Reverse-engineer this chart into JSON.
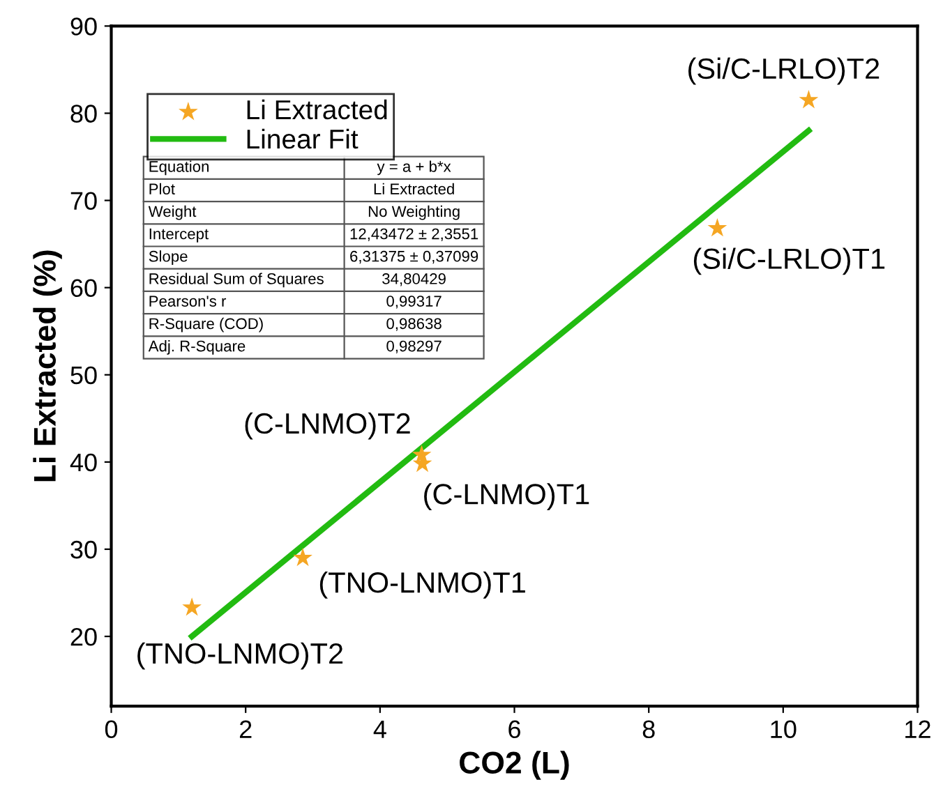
{
  "chart_data": {
    "type": "scatter",
    "xlabel": "CO2 (L)",
    "ylabel": "Li Extracted (%)",
    "xlim": [
      0,
      12
    ],
    "ylim": [
      12,
      90
    ],
    "xticks": [
      0,
      2,
      4,
      6,
      8,
      10,
      12
    ],
    "yticks": [
      20,
      30,
      40,
      50,
      60,
      70,
      80,
      90
    ],
    "grid": false,
    "legend": "top left",
    "series": [
      {
        "name": "Li Extracted",
        "type": "scatter",
        "marker": "star",
        "color": "#f5a623",
        "x": [
          1.2,
          2.85,
          4.62,
          4.63,
          9.02,
          10.38
        ],
        "values": [
          23.3,
          29.0,
          40.8,
          39.8,
          66.8,
          81.5
        ]
      },
      {
        "name": "Linear Fit",
        "type": "line",
        "marker": "none",
        "line_style": "solid",
        "color": "#22bb11",
        "x": [
          1.2,
          10.38
        ],
        "values": [
          20.0,
          78.0
        ]
      }
    ],
    "annotations": [
      {
        "text": "(TNO-LNMO)T2",
        "x": 1.2,
        "y": 23.3
      },
      {
        "text": "(TNO-LNMO)T1",
        "x": 2.85,
        "y": 29.0
      },
      {
        "text": "(C-LNMO)T2",
        "x": 4.62,
        "y": 40.8
      },
      {
        "text": "(C-LNMO)T1",
        "x": 4.63,
        "y": 39.8
      },
      {
        "text": "(Si/C-LRLO)T1",
        "x": 9.02,
        "y": 66.8
      },
      {
        "text": "(Si/C-LRLO)T2",
        "x": 10.38,
        "y": 81.5
      },
      "Equation",
      "y = a + b*x",
      "Plot",
      "Li Extracted",
      "Weight",
      "No Weighting",
      "Intercept",
      "12,43472 ± 2,3551",
      "Slope",
      "6,31375 ± 0,37099",
      "Residual Sum of Squares",
      "34,80429",
      "Pearson's r",
      "0,99317",
      "R-Square (COD)",
      "0,98638",
      "Adj. R-Square",
      "0,98297"
    ]
  }
}
